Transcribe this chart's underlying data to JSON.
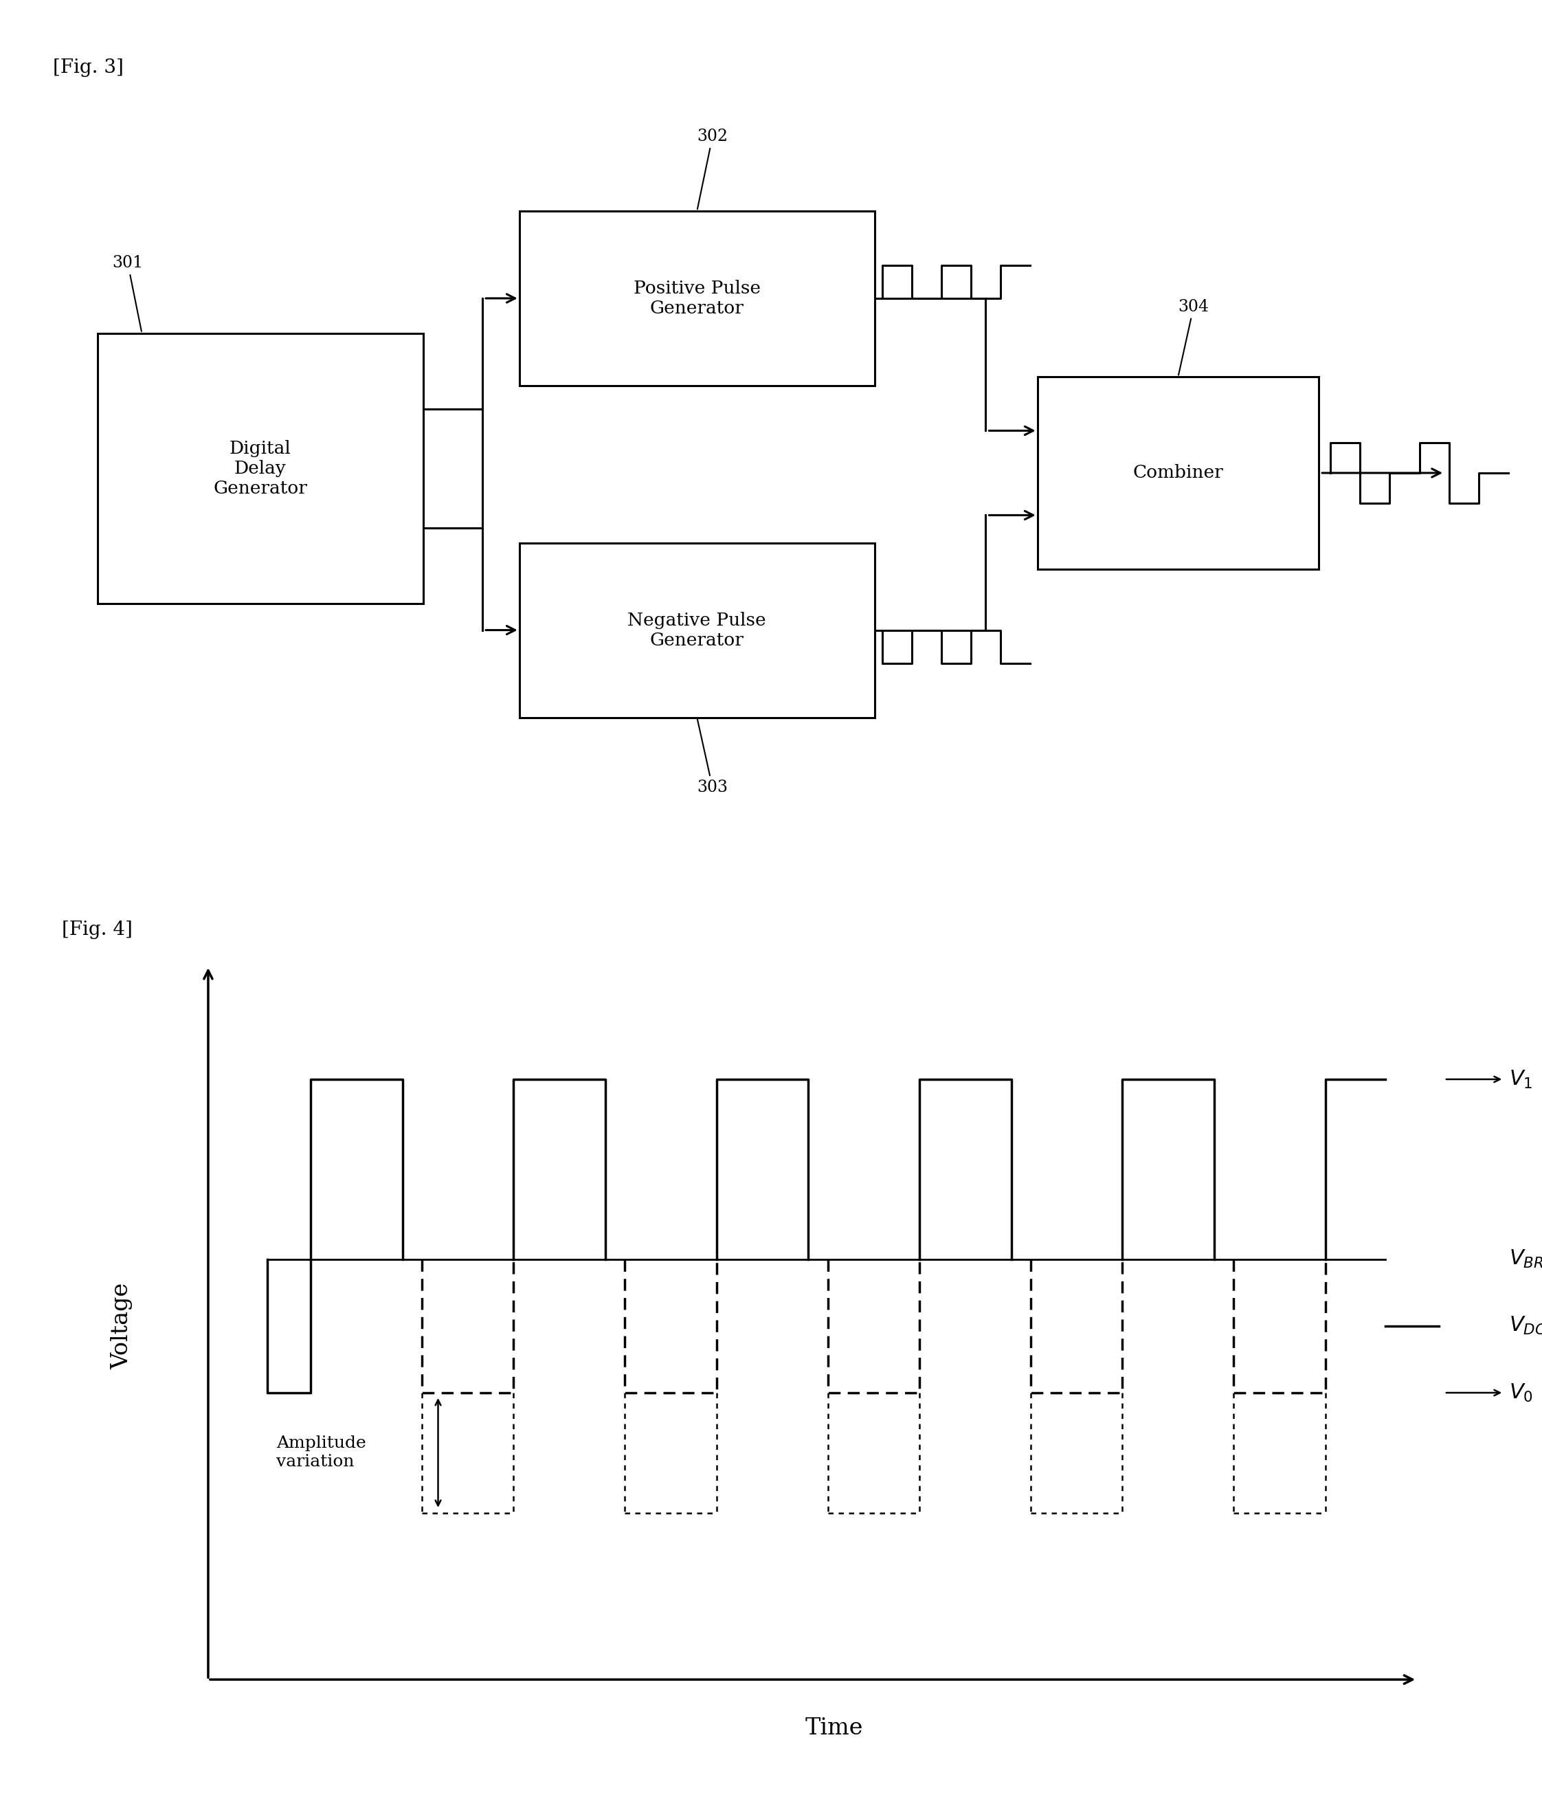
{
  "fig3_label": "[Fig. 3]",
  "fig4_label": "[Fig. 4]",
  "box301_label": "Digital\nDelay\nGenerator",
  "box301_id": "301",
  "box302_label": "Positive Pulse\nGenerator",
  "box302_id": "302",
  "box303_label": "Negative Pulse\nGenerator",
  "box303_id": "303",
  "box304_label": "Combiner",
  "box304_id": "304",
  "fig4_xlabel": "Time",
  "fig4_ylabel": "Voltage",
  "background_color": "#ffffff",
  "box_edge_color": "#000000",
  "line_color": "#000000"
}
